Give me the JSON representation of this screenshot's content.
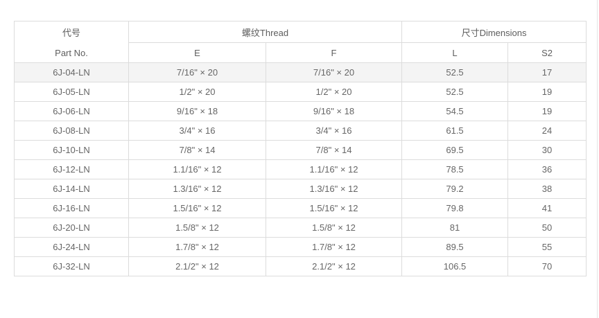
{
  "table": {
    "header": {
      "part_no_cn": "代号",
      "part_no_en": "Part No.",
      "thread_group": "螺纹Thread",
      "dimensions_group": "尺寸Dimensions",
      "sub_e": "E",
      "sub_f": "F",
      "sub_l": "L",
      "sub_s2": "S2"
    },
    "rows": [
      {
        "part": "6J-04-LN",
        "e": "7/16\" × 20",
        "f": "7/16\" × 20",
        "l": "52.5",
        "s2": "17",
        "highlight": true
      },
      {
        "part": "6J-05-LN",
        "e": "1/2\" × 20",
        "f": "1/2\" × 20",
        "l": "52.5",
        "s2": "19",
        "highlight": false
      },
      {
        "part": "6J-06-LN",
        "e": "9/16\" × 18",
        "f": "9/16\" × 18",
        "l": "54.5",
        "s2": "19",
        "highlight": false
      },
      {
        "part": "6J-08-LN",
        "e": "3/4\" × 16",
        "f": "3/4\" × 16",
        "l": "61.5",
        "s2": "24",
        "highlight": false
      },
      {
        "part": "6J-10-LN",
        "e": "7/8\" × 14",
        "f": "7/8\" × 14",
        "l": "69.5",
        "s2": "30",
        "highlight": false
      },
      {
        "part": "6J-12-LN",
        "e": "1.1/16\" × 12",
        "f": "1.1/16\" × 12",
        "l": "78.5",
        "s2": "36",
        "highlight": false
      },
      {
        "part": "6J-14-LN",
        "e": "1.3/16\" × 12",
        "f": "1.3/16\" × 12",
        "l": "79.2",
        "s2": "38",
        "highlight": false
      },
      {
        "part": "6J-16-LN",
        "e": "1.5/16\" × 12",
        "f": "1.5/16\" × 12",
        "l": "79.8",
        "s2": "41",
        "highlight": false
      },
      {
        "part": "6J-20-LN",
        "e": "1.5/8\" × 12",
        "f": "1.5/8\" × 12",
        "l": "81",
        "s2": "50",
        "highlight": false
      },
      {
        "part": "6J-24-LN",
        "e": "1.7/8\" × 12",
        "f": "1.7/8\" × 12",
        "l": "89.5",
        "s2": "55",
        "highlight": false
      },
      {
        "part": "6J-32-LN",
        "e": "2.1/2\" × 12",
        "f": "2.1/2\" × 12",
        "l": "106.5",
        "s2": "70",
        "highlight": false
      }
    ]
  },
  "colors": {
    "border": "#dcdcdc",
    "text": "#666666",
    "row_highlight": "#f4f4f4",
    "page_edge": "#e4e4e4",
    "background": "#ffffff"
  }
}
